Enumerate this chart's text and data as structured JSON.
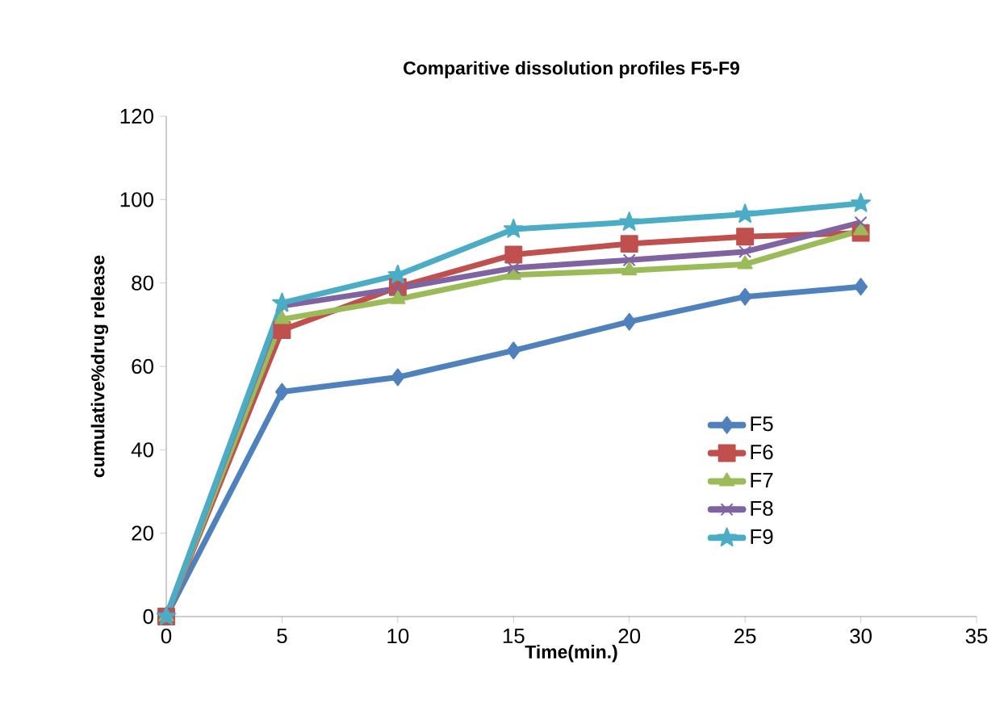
{
  "chart_data": {
    "type": "line",
    "title": "Comparitive dissolution profiles F5-F9",
    "xlabel": "Time(min.)",
    "ylabel": "cumulative%drug release",
    "x": [
      0,
      5,
      10,
      15,
      20,
      25,
      30
    ],
    "series": [
      {
        "name": "F5",
        "color": "#4f81bd",
        "marker": "diamond",
        "values": [
          0,
          53.9,
          57.4,
          63.8,
          70.7,
          76.7,
          79.1
        ]
      },
      {
        "name": "F6",
        "color": "#c0504d",
        "marker": "square",
        "values": [
          0,
          68.7,
          79,
          86.8,
          89.4,
          91.1,
          92
        ]
      },
      {
        "name": "F7",
        "color": "#9bbb59",
        "marker": "triangle",
        "values": [
          0,
          71.3,
          76.1,
          81.9,
          83,
          84.5,
          92.6
        ]
      },
      {
        "name": "F8",
        "color": "#8064a2",
        "marker": "cross",
        "values": [
          0,
          74.5,
          78.7,
          83.6,
          85.5,
          87.5,
          94.5
        ]
      },
      {
        "name": "F9",
        "color": "#4bacc6",
        "marker": "star",
        "values": [
          0,
          75.2,
          81.9,
          92.9,
          94.6,
          96.5,
          99.1
        ]
      }
    ],
    "xlim": [
      0,
      35
    ],
    "xticks": [
      0,
      5,
      10,
      15,
      20,
      25,
      30,
      35
    ],
    "ylim": [
      0,
      120
    ],
    "yticks": [
      0,
      20,
      40,
      60,
      80,
      100,
      120
    ],
    "grid": false,
    "legend": "right",
    "line_style": "solid"
  }
}
